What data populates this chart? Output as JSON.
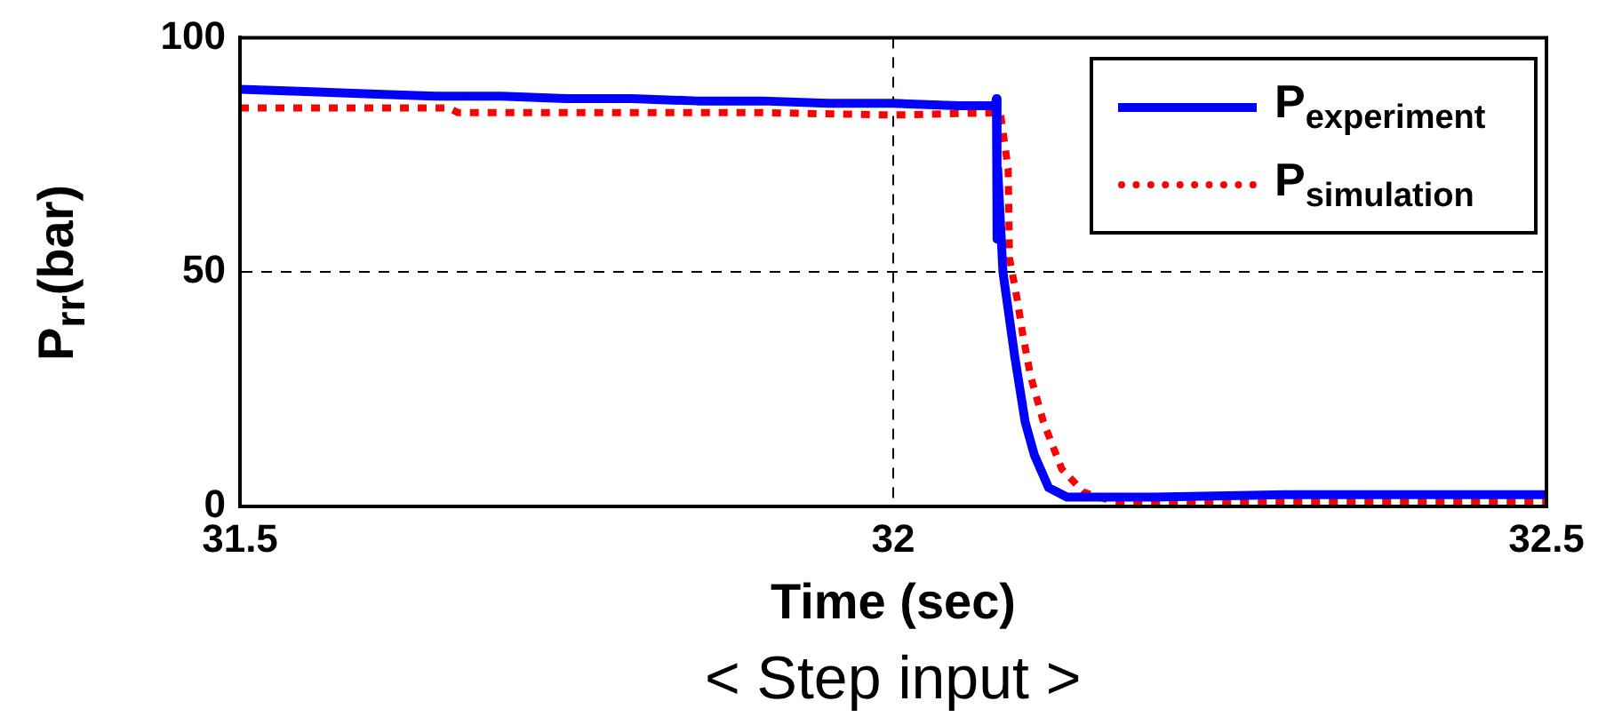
{
  "chart_data": {
    "type": "line",
    "xlabel": "Time (sec)",
    "ylabel": "P$_{rr}$(bar)",
    "annotations": [
      "< Step input >"
    ],
    "xlim": [
      31.5,
      32.5
    ],
    "xticks": [
      31.5,
      32,
      32.5
    ],
    "ylim": [
      0,
      100
    ],
    "yticks": [
      0,
      50,
      100
    ],
    "grid": true,
    "legend": "top right",
    "marker": "none",
    "series": [
      {
        "name": "P$_{experiment}$",
        "color": "#0000ff",
        "line_style": "solid",
        "x": [
          31.5,
          31.55,
          31.6,
          31.65,
          31.7,
          31.75,
          31.8,
          31.85,
          31.9,
          31.95,
          32,
          32.05,
          32.078,
          32.079,
          32.0795,
          32.08,
          32.084,
          32.093,
          32.101,
          32.108,
          32.119,
          32.133,
          32.2,
          32.3,
          32.4,
          32.5
        ],
        "values": [
          89,
          88.5,
          88,
          87.5,
          87.5,
          87,
          87,
          86.5,
          86.5,
          86,
          86,
          85.5,
          85.5,
          87,
          57,
          72,
          50,
          32,
          18,
          11,
          4,
          2,
          2,
          2.5,
          2.5,
          2.5
        ]
      },
      {
        "name": "P$_{simulation}$",
        "color": "#ff0000",
        "line_style": "dotted",
        "x": [
          31.5,
          31.66,
          31.667,
          31.9,
          32,
          32.082,
          32.088,
          32.089,
          32.095,
          32.099,
          32.105,
          32.115,
          32.129,
          32.146,
          32.169,
          32.3,
          32.5
        ],
        "values": [
          85,
          85,
          84,
          84,
          83.5,
          84,
          72,
          53,
          44,
          37,
          28,
          18,
          8,
          3,
          1,
          1,
          1
        ]
      }
    ]
  }
}
